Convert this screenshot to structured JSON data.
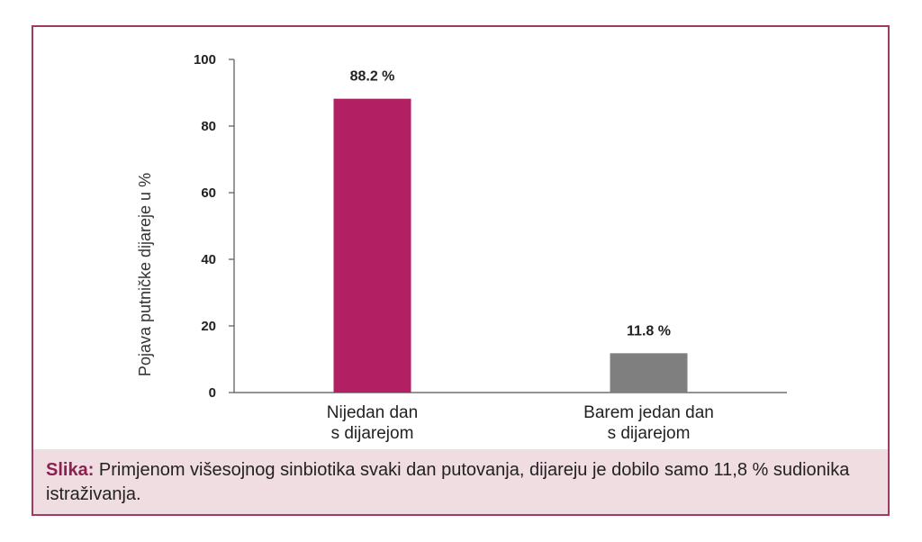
{
  "chart_data": {
    "type": "bar",
    "categories": [
      [
        "Nijedan dan",
        "s dijarejom"
      ],
      [
        "Barem jedan dan",
        "s dijarejom"
      ]
    ],
    "values": [
      88.2,
      11.8
    ],
    "data_labels": [
      "88.2 %",
      "11.8 %"
    ],
    "colors": [
      "#b21f63",
      "#7f7f7f"
    ],
    "title": "",
    "xlabel": "",
    "ylabel": "Pojava putničke dijareje u %",
    "ylim": [
      0,
      100
    ],
    "yticks": [
      0,
      20,
      40,
      60,
      80,
      100
    ],
    "grid": false,
    "legend": "none"
  },
  "caption": {
    "lead": "Slika:",
    "text": " Primjenom višesojnog sinbiotika svaki dan putovanja, dijareju je dobilo samo 11,8 % sudionika istraživanja."
  }
}
